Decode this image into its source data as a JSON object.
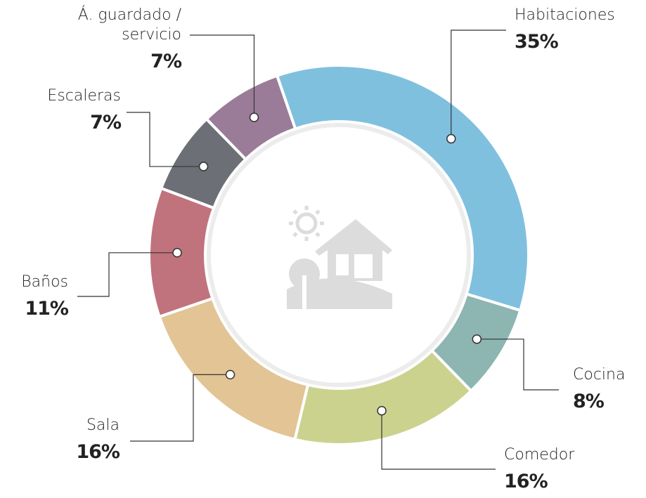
{
  "chart_data": {
    "type": "donut",
    "categories": [
      "Habitaciones",
      "Cocina",
      "Comedor",
      "Sala",
      "Baños",
      "Escaleras",
      "Á. guardado / servicio"
    ],
    "values": [
      35,
      8,
      16,
      16,
      11,
      7,
      7
    ],
    "value_labels": [
      "35%",
      "8%",
      "16%",
      "16%",
      "11%",
      "7%",
      "7%"
    ],
    "colors": [
      "#80c0df",
      "#8db5b2",
      "#cad28e",
      "#e2c495",
      "#c0737d",
      "#6c6f76",
      "#9a7c98"
    ]
  }
}
